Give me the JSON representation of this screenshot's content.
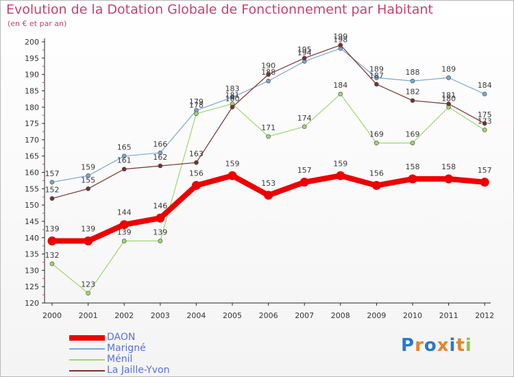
{
  "header": {
    "title": "Evolution de la Dotation Globale de Fonctionnement par Habitant",
    "subtitle": "(en € et par an)"
  },
  "logo": {
    "text": "Proxiti",
    "letter_colors": [
      "#2a79c9",
      "#e8822a",
      "#2a79c9",
      "#e8822a",
      "#2a79c9",
      "#e8822a",
      "#8cc63f"
    ]
  },
  "chart_data": {
    "type": "line",
    "title": "Evolution de la Dotation Globale de Fonctionnement par Habitant",
    "subtitle": "(en € et par an)",
    "xlabel": "",
    "ylabel": "",
    "x": [
      "2000",
      "2001",
      "2002",
      "2003",
      "2004",
      "2005",
      "2006",
      "2007",
      "2008",
      "2009",
      "2010",
      "2011",
      "2012"
    ],
    "ylim": [
      120,
      200
    ],
    "yticks": [
      120,
      125,
      130,
      135,
      140,
      145,
      150,
      155,
      160,
      165,
      170,
      175,
      180,
      185,
      190,
      195,
      200
    ],
    "grid": false,
    "legend_position": "bottom-left",
    "series": [
      {
        "name": "DAON",
        "color": "#ee0000",
        "values": [
          139,
          139,
          144,
          146,
          156,
          159,
          153,
          157,
          159,
          156,
          158,
          158,
          157
        ],
        "labels": [
          "139",
          "139",
          "144",
          "146",
          "156",
          "159",
          "153",
          "157",
          "159",
          "156",
          "158",
          "158",
          "157"
        ]
      },
      {
        "name": "Marigné",
        "color": "#7aa6d4",
        "values": [
          157,
          159,
          165,
          166,
          179,
          183,
          188,
          194,
          198,
          189,
          188,
          189,
          184
        ],
        "labels": [
          "157",
          "159",
          "165",
          "166",
          "179",
          "183",
          "188",
          "194",
          "198",
          "189",
          "188",
          "189",
          "184"
        ]
      },
      {
        "name": "Ménil",
        "color": "#9ad86e",
        "values": [
          132,
          123,
          139,
          139,
          178,
          181,
          171,
          174,
          184,
          169,
          169,
          180,
          173
        ],
        "labels": [
          "132",
          "123",
          "139",
          "139",
          "178",
          "181",
          "171",
          "174",
          "184",
          "169",
          "169",
          "180",
          "173"
        ]
      },
      {
        "name": "La Jaille-Yvon",
        "color": "#7a3030",
        "values": [
          152,
          155,
          161,
          162,
          163,
          180,
          190,
          195,
          199,
          187,
          182,
          181,
          175
        ],
        "labels": [
          "152",
          "155",
          "161",
          "162",
          "163",
          "180",
          "190",
          "195",
          "199",
          "187",
          "182",
          "181",
          "175"
        ]
      }
    ]
  }
}
